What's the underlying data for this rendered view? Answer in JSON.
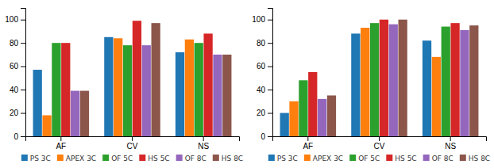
{
  "chart_data": [
    {
      "type": "bar",
      "categories": [
        "AF",
        "CV",
        "NS"
      ],
      "series": [
        {
          "name": "PS 3C",
          "values": [
            57,
            85,
            72
          ]
        },
        {
          "name": "APEX 3C",
          "values": [
            18,
            84,
            83
          ]
        },
        {
          "name": "OF 5C",
          "values": [
            80,
            78,
            80
          ]
        },
        {
          "name": "HS 5C",
          "values": [
            80,
            99,
            88
          ]
        },
        {
          "name": "OF 8C",
          "values": [
            39,
            78,
            70
          ]
        },
        {
          "name": "HS 8C",
          "values": [
            39,
            97,
            70
          ]
        }
      ],
      "ylim": [
        0,
        110
      ],
      "yticks": [
        0,
        20,
        40,
        60,
        80,
        100
      ],
      "grid": false,
      "legend": "bottom"
    },
    {
      "type": "bar",
      "categories": [
        "AF",
        "CV",
        "NS"
      ],
      "series": [
        {
          "name": "PS 3C",
          "values": [
            20,
            88,
            82
          ]
        },
        {
          "name": "APEX 3C",
          "values": [
            30,
            93,
            68
          ]
        },
        {
          "name": "OF 5C",
          "values": [
            48,
            97,
            94
          ]
        },
        {
          "name": "HS 5C",
          "values": [
            55,
            100,
            97
          ]
        },
        {
          "name": "OF 8C",
          "values": [
            32,
            96,
            91
          ]
        },
        {
          "name": "HS 8C",
          "values": [
            35,
            100,
            95
          ]
        }
      ],
      "ylim": [
        0,
        110
      ],
      "yticks": [
        0,
        20,
        40,
        60,
        80,
        100
      ],
      "grid": false,
      "legend": "bottom"
    }
  ]
}
